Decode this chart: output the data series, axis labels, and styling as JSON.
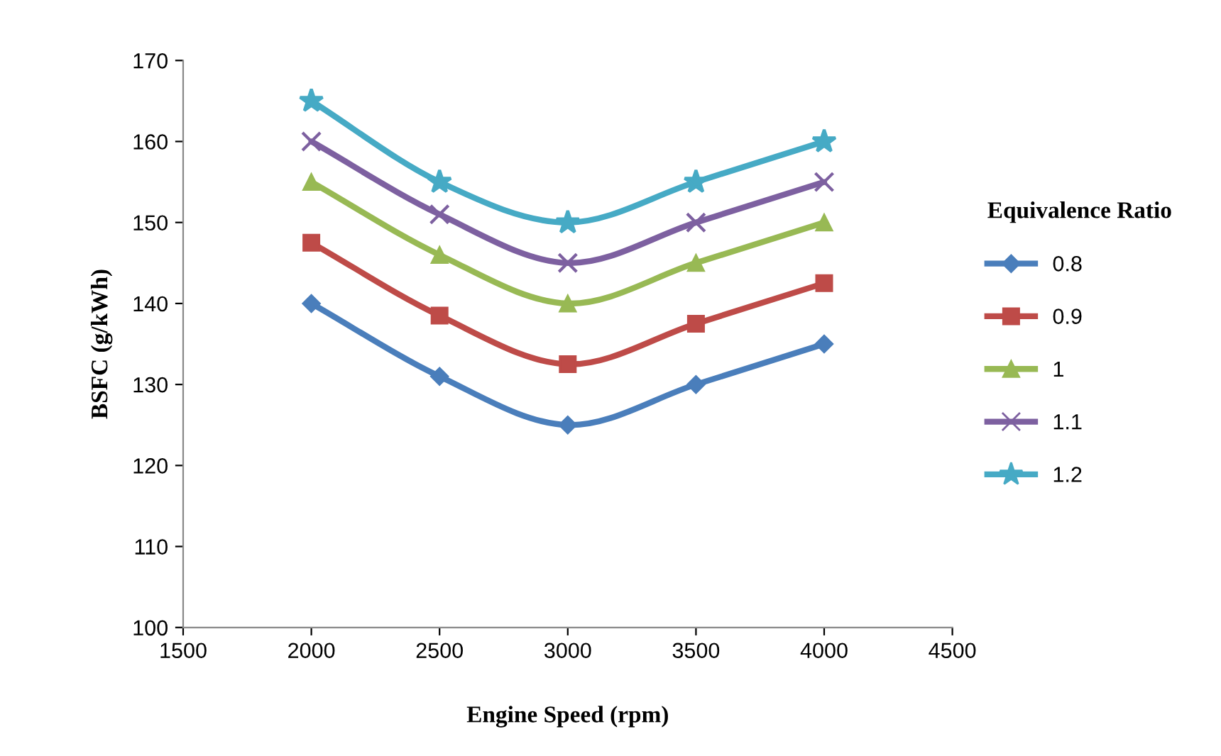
{
  "chart_data": {
    "type": "line",
    "xlabel": "Engine Speed (rpm)",
    "ylabel": "BSFC (g/kWh)",
    "legend_title": "Equivalence Ratio",
    "x": [
      2000,
      2500,
      3000,
      3500,
      4000
    ],
    "series": [
      {
        "name": "0.8",
        "color": "#4a7ebb",
        "marker": "diamond",
        "values": [
          140,
          131,
          125,
          130,
          135
        ]
      },
      {
        "name": "0.9",
        "color": "#be4b48",
        "marker": "square",
        "values": [
          147.5,
          138.5,
          132.5,
          137.5,
          142.5
        ]
      },
      {
        "name": "1",
        "color": "#98b954",
        "marker": "triangle",
        "values": [
          155,
          146,
          140,
          145,
          150
        ]
      },
      {
        "name": "1.1",
        "color": "#7d60a0",
        "marker": "cross",
        "values": [
          160,
          151,
          145,
          150,
          155
        ]
      },
      {
        "name": "1.2",
        "color": "#46aac5",
        "marker": "star",
        "values": [
          165,
          155,
          150,
          155,
          160
        ]
      }
    ],
    "xlim": [
      1500,
      4500
    ],
    "xticks": [
      1500,
      2000,
      2500,
      3000,
      3500,
      4000,
      4500
    ],
    "ylim": [
      100,
      170
    ],
    "yticks": [
      100,
      110,
      120,
      130,
      140,
      150,
      160,
      170
    ],
    "grid": false,
    "legend": "right",
    "line_style": "solid"
  }
}
